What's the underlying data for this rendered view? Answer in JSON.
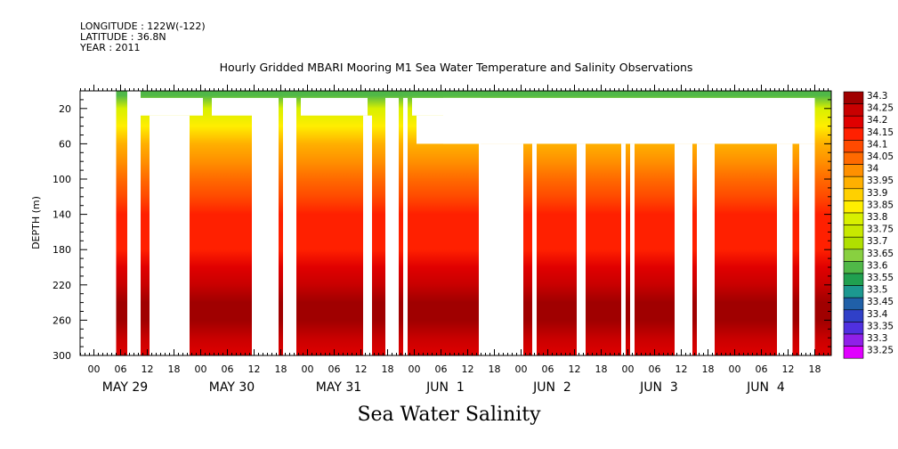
{
  "meta": {
    "longitude": "LONGITUDE : 122W(-122)",
    "latitude": "LATITUDE : 36.8N",
    "year": "YEAR : 2011"
  },
  "plot_title": "Hourly Gridded MBARI Mooring M1 Sea Water Temperature and Salinity Observations",
  "main_title": "Sea Water Salinity",
  "chart_data": {
    "type": "heatmap",
    "title": "Hourly Gridded MBARI Mooring M1 Sea Water Temperature and Salinity Observations",
    "xlabel": "",
    "ylabel": "DEPTH (m)",
    "ylim": [
      300,
      0
    ],
    "xlim_hours": [
      -6,
      162
    ],
    "y_ticks": [
      20,
      60,
      100,
      140,
      180,
      220,
      260,
      300
    ],
    "x_hour_ticks": [
      {
        "h": 0,
        "label": "00"
      },
      {
        "h": 6,
        "label": "06"
      },
      {
        "h": 12,
        "label": "12"
      },
      {
        "h": 18,
        "label": "18"
      },
      {
        "h": 24,
        "label": "00"
      },
      {
        "h": 30,
        "label": "06"
      },
      {
        "h": 36,
        "label": "12"
      },
      {
        "h": 42,
        "label": "18"
      },
      {
        "h": 48,
        "label": "00"
      },
      {
        "h": 54,
        "label": "06"
      },
      {
        "h": 60,
        "label": "12"
      },
      {
        "h": 66,
        "label": "18"
      },
      {
        "h": 72,
        "label": "00"
      },
      {
        "h": 78,
        "label": "06"
      },
      {
        "h": 84,
        "label": "12"
      },
      {
        "h": 90,
        "label": "18"
      },
      {
        "h": 96,
        "label": "00"
      },
      {
        "h": 102,
        "label": "06"
      },
      {
        "h": 108,
        "label": "12"
      },
      {
        "h": 114,
        "label": "18"
      },
      {
        "h": 120,
        "label": "00"
      },
      {
        "h": 126,
        "label": "06"
      },
      {
        "h": 132,
        "label": "12"
      },
      {
        "h": 138,
        "label": "18"
      },
      {
        "h": 144,
        "label": "00"
      },
      {
        "h": 150,
        "label": "06"
      },
      {
        "h": 156,
        "label": "12"
      },
      {
        "h": 162,
        "label": "18"
      }
    ],
    "day_labels": [
      {
        "h": 6,
        "label": "MAY 29"
      },
      {
        "h": 30,
        "label": "MAY 30"
      },
      {
        "h": 54,
        "label": "MAY 31"
      },
      {
        "h": 78,
        "label": "JUN  1"
      },
      {
        "h": 102,
        "label": "JUN  2"
      },
      {
        "h": 126,
        "label": "JUN  3"
      },
      {
        "h": 150,
        "label": "JUN  4"
      }
    ],
    "colorbar_levels": [
      "34.3",
      "34.25",
      "34.2",
      "34.15",
      "34.1",
      "34.05",
      "34",
      "33.95",
      "33.9",
      "33.85",
      "33.8",
      "33.75",
      "33.7",
      "33.65",
      "33.6",
      "33.55",
      "33.5",
      "33.45",
      "33.4",
      "33.35",
      "33.3",
      "33.25"
    ],
    "colorbar_colors": [
      "#a00000",
      "#c80000",
      "#e00000",
      "#ff2000",
      "#ff4a00",
      "#ff6a00",
      "#ff9000",
      "#ffb000",
      "#ffd000",
      "#ffee00",
      "#d8f000",
      "#c8e800",
      "#b0e000",
      "#88d040",
      "#50b848",
      "#20a050",
      "#1c9890",
      "#2060a8",
      "#3040c8",
      "#5030e0",
      "#9020e8",
      "#e000ff"
    ],
    "salinity_profile": [
      {
        "depth": 5,
        "value": 33.6
      },
      {
        "depth": 20,
        "value": 33.8
      },
      {
        "depth": 40,
        "value": 33.85
      },
      {
        "depth": 60,
        "value": 33.95
      },
      {
        "depth": 80,
        "value": 34.0
      },
      {
        "depth": 100,
        "value": 34.05
      },
      {
        "depth": 120,
        "value": 34.1
      },
      {
        "depth": 140,
        "value": 34.15
      },
      {
        "depth": 160,
        "value": 34.15
      },
      {
        "depth": 180,
        "value": 34.15
      },
      {
        "depth": 200,
        "value": 34.2
      },
      {
        "depth": 220,
        "value": 34.25
      },
      {
        "depth": 240,
        "value": 34.3
      },
      {
        "depth": 260,
        "value": 34.3
      },
      {
        "depth": 280,
        "value": 34.25
      },
      {
        "depth": 300,
        "value": 34.2
      }
    ],
    "data_gaps": [
      {
        "h0": -0.5,
        "h1": 5,
        "d0": 0,
        "d1": 300
      },
      {
        "h0": 7.5,
        "h1": 10.5,
        "d0": 0,
        "d1": 300
      },
      {
        "h0": 12.5,
        "h1": 21.5,
        "d0": 28,
        "d1": 300
      },
      {
        "h0": 7.5,
        "h1": 24.5,
        "d0": 8,
        "d1": 28
      },
      {
        "h0": 35.5,
        "h1": 41.5,
        "d0": 8,
        "d1": 300
      },
      {
        "h0": 26.5,
        "h1": 35.5,
        "d0": 8,
        "d1": 28
      },
      {
        "h0": 42.5,
        "h1": 45.5,
        "d0": 8,
        "d1": 300
      },
      {
        "h0": 46.5,
        "h1": 61.5,
        "d0": 8,
        "d1": 28
      },
      {
        "h0": 60.5,
        "h1": 62.5,
        "d0": 28,
        "d1": 300
      },
      {
        "h0": 65.5,
        "h1": 68.5,
        "d0": 8,
        "d1": 300
      },
      {
        "h0": 69.5,
        "h1": 70.5,
        "d0": 8,
        "d1": 300
      },
      {
        "h0": 71.5,
        "h1": 87,
        "d0": 8,
        "d1": 28
      },
      {
        "h0": 72.5,
        "h1": 87,
        "d0": 28,
        "d1": 60
      },
      {
        "h0": 86.5,
        "h1": 96.5,
        "d0": 60,
        "d1": 300
      },
      {
        "h0": 78.5,
        "h1": 162,
        "d0": 8,
        "d1": 60
      },
      {
        "h0": 98.5,
        "h1": 99.5,
        "d0": 60,
        "d1": 300
      },
      {
        "h0": 108.5,
        "h1": 110.5,
        "d0": 60,
        "d1": 300
      },
      {
        "h0": 118.5,
        "h1": 119.5,
        "d0": 60,
        "d1": 300
      },
      {
        "h0": 120.5,
        "h1": 121.5,
        "d0": 60,
        "d1": 300
      },
      {
        "h0": 130.5,
        "h1": 134.5,
        "d0": 60,
        "d1": 300
      },
      {
        "h0": 135.5,
        "h1": 139.5,
        "d0": 60,
        "d1": 300
      },
      {
        "h0": 153.5,
        "h1": 157,
        "d0": 60,
        "d1": 300
      },
      {
        "h0": 158.5,
        "h1": 162,
        "d0": 60,
        "d1": 300
      }
    ],
    "grid": false,
    "legend": "colorbar-right"
  }
}
